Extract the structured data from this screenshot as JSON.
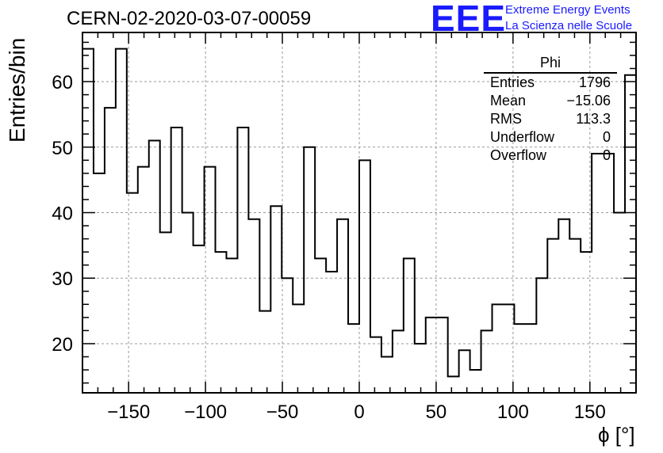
{
  "header": {
    "title": "CERN-02-2020-03-07-00059",
    "logo_text": "EEE",
    "logo_line1": "Extreme Energy Events",
    "logo_line2": "La Scienza nelle Scuole",
    "logo_color": "#1a1aff"
  },
  "stats": {
    "name": "Phi",
    "rows": [
      {
        "label": "Entries",
        "value": "1796"
      },
      {
        "label": "Mean",
        "value": "−15.06"
      },
      {
        "label": "RMS",
        "value": "113.3"
      },
      {
        "label": "Underflow",
        "value": "0"
      },
      {
        "label": "Overflow",
        "value": "0"
      }
    ]
  },
  "chart_data": {
    "type": "histogram",
    "title": "CERN-02-2020-03-07-00059",
    "xlabel": "ϕ [°]",
    "ylabel": "Entries/bin",
    "xlim": [
      -180,
      180
    ],
    "ylim": [
      12.5,
      67.5
    ],
    "bin_width": 7.2,
    "x_ticks": [
      -150,
      -100,
      -50,
      0,
      50,
      100,
      150
    ],
    "x_tick_labels": [
      "−150",
      "−100",
      "−50",
      "0",
      "50",
      "100",
      "150"
    ],
    "y_ticks": [
      20,
      30,
      40,
      50,
      60
    ],
    "y_tick_labels": [
      "20",
      "30",
      "40",
      "50",
      "60"
    ],
    "grid": true,
    "bin_counts": [
      65,
      46,
      56,
      65,
      43,
      47,
      51,
      37,
      53,
      40,
      35,
      47,
      34,
      33,
      53,
      39,
      25,
      41,
      30,
      26,
      50,
      33,
      31,
      39,
      23,
      48,
      21,
      18,
      22,
      33,
      20,
      24,
      24,
      15,
      19,
      16,
      22,
      26,
      26,
      23,
      23,
      30,
      36,
      39,
      36,
      34,
      49,
      49,
      40,
      61
    ],
    "line_color": "#000000"
  }
}
